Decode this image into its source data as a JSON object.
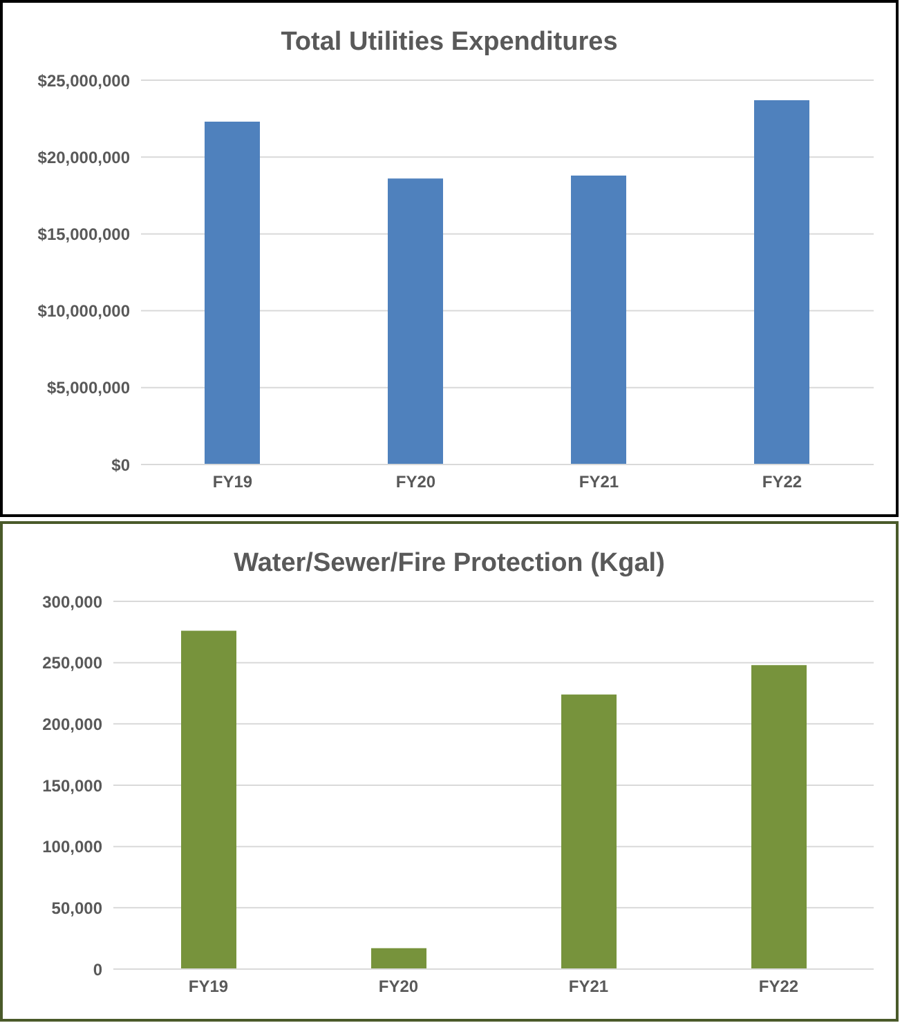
{
  "chart_data": [
    {
      "type": "bar",
      "title": "Total Utilities Expenditures",
      "categories": [
        "FY19",
        "FY20",
        "FY21",
        "FY22"
      ],
      "values": [
        22300000,
        18600000,
        18800000,
        23700000
      ],
      "color": "#4f81bd",
      "ylim": [
        0,
        25000000
      ],
      "yticks": [
        {
          "value": 0,
          "label": "$0"
        },
        {
          "value": 5000000,
          "label": "$5,000,000"
        },
        {
          "value": 10000000,
          "label": "$10,000,000"
        },
        {
          "value": 15000000,
          "label": "$15,000,000"
        },
        {
          "value": 20000000,
          "label": "$20,000,000"
        },
        {
          "value": 25000000,
          "label": "$25,000,000"
        }
      ],
      "grid": "y"
    },
    {
      "type": "bar",
      "title": "Water/Sewer/Fire Protection (Kgal)",
      "categories": [
        "FY19",
        "FY20",
        "FY21",
        "FY22"
      ],
      "values": [
        276000,
        17000,
        224000,
        248000
      ],
      "color": "#77933c",
      "ylim": [
        0,
        300000
      ],
      "yticks": [
        {
          "value": 0,
          "label": "0"
        },
        {
          "value": 50000,
          "label": "50,000"
        },
        {
          "value": 100000,
          "label": "100,000"
        },
        {
          "value": 150000,
          "label": "150,000"
        },
        {
          "value": 200000,
          "label": "200,000"
        },
        {
          "value": 250000,
          "label": "250,000"
        },
        {
          "value": 300000,
          "label": "300,000"
        }
      ],
      "grid": "y"
    }
  ]
}
